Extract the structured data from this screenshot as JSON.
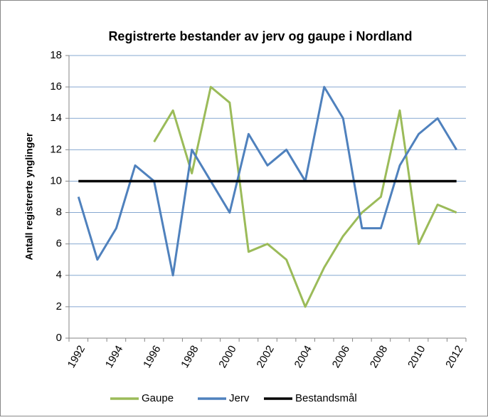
{
  "chart_data": {
    "type": "line",
    "title": "Registrerte bestander av jerv og gaupe i Nordland",
    "y_label": "Antall registrerte ynglinger",
    "categories": [
      "1992",
      null,
      "1994",
      null,
      "1996",
      null,
      "1998",
      null,
      "2000",
      null,
      "2002",
      null,
      "2004",
      null,
      "2006",
      null,
      "2008",
      null,
      "2010",
      null,
      "2012"
    ],
    "series": [
      {
        "name": "Gaupe",
        "color": "#9bbb59",
        "values": [
          null,
          null,
          null,
          null,
          12.5,
          14.5,
          10.5,
          16,
          15,
          5.5,
          6,
          5,
          2,
          4.5,
          6.5,
          8,
          9,
          14.5,
          6,
          8.5,
          8
        ]
      },
      {
        "name": "Jerv",
        "color": "#4f81bd",
        "values": [
          9,
          5,
          7,
          11,
          10,
          4,
          12,
          10,
          8,
          13,
          11,
          12,
          10,
          16,
          14,
          7,
          7,
          11,
          13,
          14,
          12
        ]
      },
      {
        "name": "Bestandsmål",
        "color": "#000000",
        "values": [
          10,
          10,
          10,
          10,
          10,
          10,
          10,
          10,
          10,
          10,
          10,
          10,
          10,
          10,
          10,
          10,
          10,
          10,
          10,
          10,
          10
        ]
      }
    ],
    "ylim": [
      0,
      18
    ],
    "yticks": [
      0,
      2,
      4,
      6,
      8,
      10,
      12,
      14,
      16,
      18
    ],
    "grid": true,
    "legend": "bottom"
  }
}
